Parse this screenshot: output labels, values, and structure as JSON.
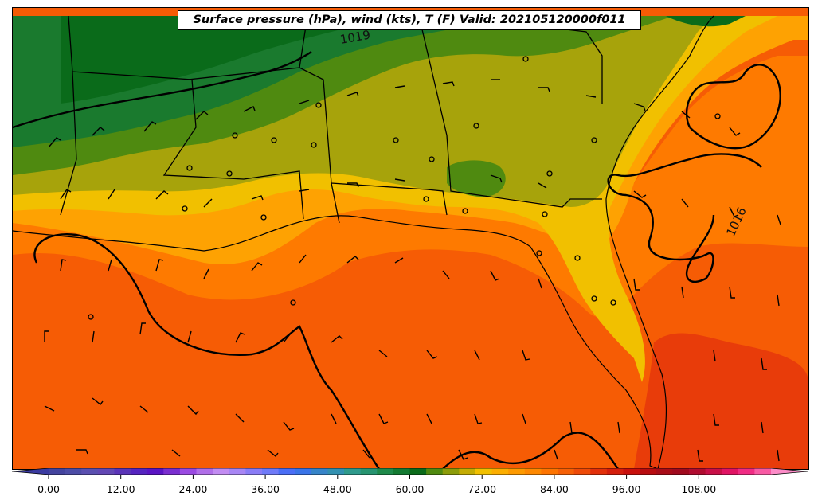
{
  "title": "Surface pressure (hPa), wind (kts), T (F) Valid: 202105120000f011",
  "map": {
    "isobar_labels": [
      {
        "id": "isobar-label-1019",
        "text": "1019"
      },
      {
        "id": "isobar-label-1016",
        "text": "1016"
      }
    ],
    "fill_colors": {
      "dark_green": "#0a6b1a",
      "green": "#1a7a2e",
      "olive": "#4f8a10",
      "khaki": "#a7a30b",
      "yellow": "#f1c000",
      "light_orange": "#fea202",
      "orange": "#fe7a00",
      "dark_orange": "#f65c05",
      "red_orange": "#e83c0a"
    }
  },
  "colorbar": {
    "tick_labels": [
      "0.00",
      "12.00",
      "24.00",
      "36.00",
      "48.00",
      "60.00",
      "72.00",
      "84.00",
      "96.00",
      "108.00"
    ],
    "tick_values": [
      0,
      12,
      24,
      36,
      48,
      60,
      72,
      84,
      96,
      108
    ],
    "range": [
      0,
      120
    ],
    "step": 3,
    "colors": [
      "#3a3aa0",
      "#43439e",
      "#4c4ca6",
      "#5a4fb0",
      "#6247b4",
      "#5a34b8",
      "#5524c0",
      "#5a14c4",
      "#7a2ed0",
      "#9a4ae2",
      "#b06ee8",
      "#c28cf2",
      "#a886f4",
      "#8a7cf6",
      "#6f7af8",
      "#4a6ef6",
      "#3a74e8",
      "#3684c8",
      "#3290b0",
      "#2f9a8c",
      "#279470",
      "#1e8a4a",
      "#137a32",
      "#0a6b1a",
      "#4f8a10",
      "#8c9c0a",
      "#c4ac04",
      "#f1c000",
      "#fcae00",
      "#fe9a00",
      "#fe8800",
      "#fe7400",
      "#f66006",
      "#ee4a08",
      "#e2300a",
      "#d41e0c",
      "#c8100c",
      "#b80c10",
      "#a80c18",
      "#a00a1e",
      "#b00c30",
      "#c81048",
      "#e01464",
      "#f02c84",
      "#f85aa4",
      "#fc8cc8"
    ]
  }
}
